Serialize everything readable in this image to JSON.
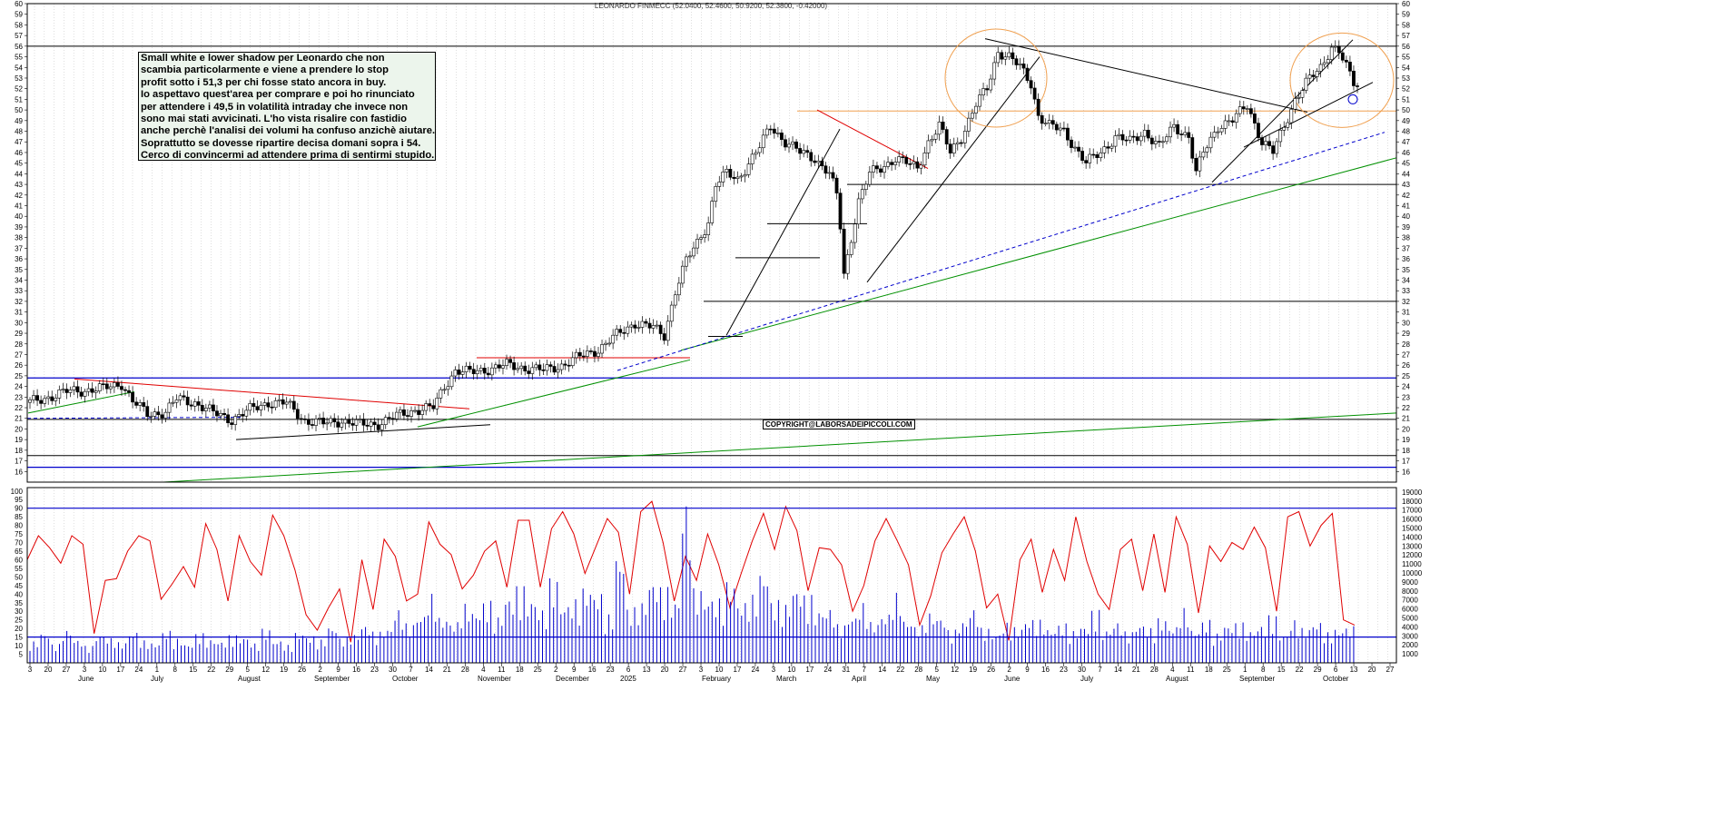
{
  "header": {
    "title": "LEONARDO FINMECC (52.0400, 52.4600, 50.9200, 52.3800, -0.42000)"
  },
  "annotation": {
    "lines": [
      "Small white e lower shadow per Leonardo che non",
      "scambia particolarmente e viene a prendere lo stop",
      "profit sotto i 51,3 per chi fosse stato ancora in buy.",
      "Io aspettavo quest'area per comprare e poi ho rinunciato",
      "per attendere i 49,5 in volatilità intraday che invece non",
      "sono mai stati avvicinati. L'ho vista risalire con fastidio",
      "anche perchè l'analisi dei volumi ha confuso anzichè aiutare.",
      "Soprattutto se dovesse ripartire decisa domani sopra i 54.",
      "Cerco di convincermi ad attendere prima di sentirmi stupido."
    ]
  },
  "copyright": "COPYRIGHT@LABORSADEIPICCOLI.COM",
  "colors": {
    "candle": "#000000",
    "support_resistance": "#000000",
    "blue_level": "#0000cc",
    "red_trend": "#e00000",
    "green_trend": "#009000",
    "orange_zone": "#f0a050",
    "oscillator": "#e00000",
    "volume": "#0000cc"
  },
  "chart_data": [
    {
      "type": "candlestick",
      "title": "LEONARDO FINMECC (52.0400, 52.4600, 50.9200, 52.3800, -0.42000)",
      "y_ticks": [
        16,
        17,
        18,
        19,
        20,
        21,
        22,
        23,
        24,
        25,
        26,
        27,
        28,
        29,
        30,
        31,
        32,
        33,
        34,
        35,
        36,
        37,
        38,
        39,
        40,
        41,
        42,
        43,
        44,
        45,
        46,
        47,
        48,
        49,
        50,
        51,
        52,
        53,
        54,
        55,
        56,
        57,
        58,
        59,
        60
      ],
      "ylim": [
        15,
        60
      ],
      "months": [
        "June",
        "July",
        "August",
        "September",
        "October",
        "November",
        "December",
        "2025",
        "February",
        "March",
        "April",
        "May",
        "June",
        "July",
        "August",
        "September",
        "October"
      ],
      "day_ticks": [
        "3",
        "20",
        "27",
        "3",
        "10",
        "17",
        "24",
        "1",
        "8",
        "15",
        "22",
        "29",
        "5",
        "12",
        "19",
        "26",
        "2",
        "9",
        "16",
        "23",
        "30",
        "7",
        "14",
        "21",
        "28",
        "4",
        "11",
        "18",
        "25",
        "2",
        "9",
        "16",
        "23",
        "6",
        "13",
        "20",
        "27",
        "3",
        "10",
        "17",
        "24",
        "3",
        "10",
        "17",
        "24",
        "31",
        "7",
        "14",
        "22",
        "28",
        "5",
        "12",
        "19",
        "26",
        "2",
        "9",
        "16",
        "23",
        "30",
        "7",
        "14",
        "21",
        "28",
        "4",
        "11",
        "18",
        "25",
        "1",
        "8",
        "15",
        "22",
        "29",
        "6",
        "13",
        "20",
        "27"
      ],
      "last_candle": {
        "open": 52.04,
        "high": 52.46,
        "low": 50.92,
        "close": 52.38,
        "change": -0.42
      },
      "close_path": [
        [
          0,
          22.5
        ],
        [
          10,
          23.5
        ],
        [
          20,
          23.8
        ],
        [
          25,
          24.3
        ],
        [
          28,
          22.6
        ],
        [
          32,
          21.4
        ],
        [
          37,
          21.6
        ],
        [
          40,
          22.8
        ],
        [
          45,
          22.5
        ],
        [
          50,
          21.5
        ],
        [
          55,
          20.9
        ],
        [
          60,
          21.8
        ],
        [
          65,
          22.5
        ],
        [
          70,
          22.4
        ],
        [
          75,
          20.8
        ],
        [
          80,
          20.5
        ],
        [
          85,
          20.8
        ],
        [
          90,
          20.4
        ],
        [
          95,
          20.5
        ],
        [
          100,
          21.2
        ],
        [
          105,
          21.8
        ],
        [
          110,
          22.0
        ],
        [
          113,
          24.0
        ],
        [
          116,
          25.5
        ],
        [
          120,
          25.3
        ],
        [
          130,
          26.0
        ],
        [
          140,
          25.5
        ],
        [
          145,
          26.0
        ],
        [
          150,
          26.8
        ],
        [
          155,
          27.5
        ],
        [
          160,
          28.8
        ],
        [
          165,
          30.0
        ],
        [
          170,
          29.5
        ],
        [
          173,
          28.8
        ],
        [
          176,
          33.0
        ],
        [
          179,
          35.8
        ],
        [
          182,
          37.5
        ],
        [
          185,
          39.5
        ],
        [
          187,
          43.0
        ],
        [
          190,
          44.0
        ],
        [
          193,
          43.5
        ],
        [
          196,
          45.0
        ],
        [
          199,
          46.5
        ],
        [
          202,
          48.5
        ],
        [
          206,
          47.0
        ],
        [
          210,
          46.0
        ],
        [
          214,
          45.5
        ],
        [
          218,
          44.0
        ],
        [
          220,
          42.0
        ],
        [
          221,
          39.0
        ],
        [
          222,
          34.5
        ],
        [
          224,
          38.0
        ],
        [
          226,
          41.5
        ],
        [
          229,
          44.0
        ],
        [
          232,
          44.5
        ],
        [
          236,
          45.5
        ],
        [
          239,
          45.0
        ],
        [
          242,
          44.5
        ],
        [
          245,
          47.0
        ],
        [
          248,
          48.5
        ],
        [
          251,
          46.0
        ],
        [
          254,
          47.5
        ],
        [
          258,
          50.5
        ],
        [
          261,
          52.0
        ],
        [
          264,
          55.5
        ],
        [
          267,
          55.0
        ],
        [
          270,
          54.0
        ],
        [
          273,
          52.5
        ],
        [
          275,
          49.5
        ],
        [
          278,
          48.5
        ],
        [
          282,
          48.0
        ],
        [
          285,
          46.5
        ],
        [
          288,
          45.0
        ],
        [
          292,
          46.0
        ],
        [
          296,
          47.5
        ],
        [
          300,
          47.0
        ],
        [
          304,
          48.0
        ],
        [
          308,
          46.5
        ],
        [
          312,
          48.5
        ],
        [
          316,
          47.5
        ],
        [
          318,
          44.0
        ],
        [
          320,
          46.0
        ],
        [
          324,
          48.5
        ],
        [
          328,
          49.0
        ],
        [
          332,
          50.5
        ],
        [
          336,
          47.0
        ],
        [
          339,
          46.0
        ],
        [
          342,
          48.5
        ],
        [
          345,
          51.0
        ],
        [
          348,
          52.5
        ],
        [
          352,
          54.0
        ],
        [
          355,
          56.0
        ],
        [
          357,
          55.5
        ],
        [
          359,
          54.0
        ],
        [
          361,
          52.5
        ],
        [
          362,
          52.38
        ]
      ],
      "levels": [
        {
          "value": 56.0,
          "color": "black"
        },
        {
          "value": 43.0,
          "color": "black"
        },
        {
          "value": 32.0,
          "color": "black"
        },
        {
          "value": 24.8,
          "color": "blue"
        },
        {
          "value": 20.9,
          "color": "black"
        },
        {
          "value": 17.5,
          "color": "black"
        },
        {
          "value": 16.4,
          "color": "blue"
        },
        {
          "value": 49.9,
          "color": "orange"
        }
      ]
    },
    {
      "type": "line",
      "title": "",
      "y_ticks": [
        5,
        10,
        15,
        20,
        25,
        30,
        35,
        40,
        45,
        50,
        55,
        60,
        65,
        70,
        75,
        80,
        85,
        90,
        95,
        100
      ],
      "ylim": [
        0,
        102
      ],
      "levels": [
        90,
        15
      ],
      "series": [
        {
          "values": [
            60,
            74,
            67,
            58,
            74,
            69,
            17,
            48,
            49,
            65,
            74,
            71,
            37,
            46,
            56,
            44,
            81,
            66,
            36,
            74,
            59,
            51,
            86,
            74,
            54,
            28,
            19,
            32,
            43,
            12,
            60,
            31,
            72,
            62,
            36,
            40,
            82,
            69,
            63,
            43,
            51,
            65,
            71,
            44,
            83,
            83,
            44,
            78,
            88,
            75,
            52,
            68,
            84,
            76,
            40,
            88,
            94,
            70,
            36,
            62,
            48,
            75,
            57,
            32,
            52,
            71,
            87,
            66,
            91,
            77,
            42,
            67,
            66,
            57,
            30,
            45,
            71,
            84,
            71,
            57,
            22,
            39,
            64,
            75,
            85,
            65,
            32,
            40,
            13,
            60,
            72,
            41,
            66,
            48,
            85,
            59,
            40,
            31,
            66,
            72,
            42,
            75,
            41,
            85,
            69,
            29,
            68,
            59,
            70,
            66,
            79,
            67,
            30,
            85,
            88,
            68,
            80,
            87,
            25,
            22
          ]
        }
      ]
    },
    {
      "type": "bar",
      "title": "",
      "y_ticks": [
        1000,
        2000,
        3000,
        4000,
        5000,
        6000,
        7000,
        8000,
        9000,
        10000,
        11000,
        12000,
        13000,
        14000,
        15000,
        16000,
        17000,
        18000,
        19000
      ],
      "ylim": [
        0,
        19500
      ],
      "series": [
        {
          "values": [
            2400,
            3400,
            2100,
            3700,
            2600,
            1900,
            3200,
            2800,
            2300,
            3500,
            2500,
            2200,
            3600,
            2700,
            2100,
            3300,
            2600,
            2400,
            3100,
            2900,
            2200,
            3800,
            2500,
            2000,
            3400,
            3000,
            2600,
            4100,
            2800,
            3200,
            4300,
            3500,
            3900,
            6000,
            4400,
            5400,
            7700,
            5100,
            4600,
            6600,
            5800,
            6900,
            5200,
            7400,
            8600,
            7100,
            6000,
            9400,
            6600,
            7100,
            8400,
            7800,
            5400,
            12000,
            6200,
            6800,
            9200,
            8500,
            7000,
            18000,
            8300,
            7300,
            7200,
            9100,
            6800,
            7600,
            10200,
            7000,
            6600,
            8400,
            7600,
            5900,
            6100,
            4300,
            5300,
            6700,
            4600,
            5500,
            7800,
            4800,
            4200,
            5600,
            5200,
            3700,
            4700,
            6100,
            3900,
            3300,
            4500,
            4000,
            4900,
            4800,
            3800,
            4400,
            3600,
            4200,
            5900,
            3700,
            4600,
            3500,
            4400,
            3900,
            5000,
            4100,
            6100,
            3700,
            4800,
            3300,
            4300,
            4500,
            3600,
            4200,
            5300,
            3200,
            4800,
            3900,
            4600,
            3400,
            3800,
            4100
          ]
        }
      ]
    }
  ]
}
